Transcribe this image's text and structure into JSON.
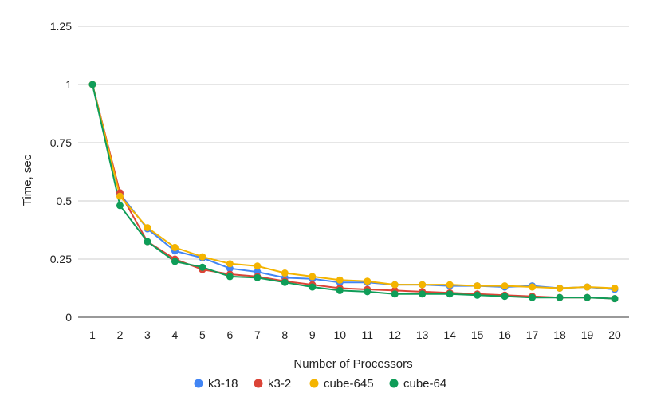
{
  "chart_data": {
    "type": "line",
    "title": "",
    "xlabel": "Number of Processors",
    "ylabel": "Time, sec",
    "x": [
      1,
      2,
      3,
      4,
      5,
      6,
      7,
      8,
      9,
      10,
      11,
      12,
      13,
      14,
      15,
      16,
      17,
      18,
      19,
      20
    ],
    "x_tick_labels": [
      "1",
      "2",
      "3",
      "4",
      "5",
      "6",
      "7",
      "8",
      "9",
      "10",
      "11",
      "12",
      "13",
      "14",
      "15",
      "16",
      "17",
      "18",
      "19",
      "20"
    ],
    "ylim": [
      0,
      1.25
    ],
    "y_ticks": [
      0,
      0.25,
      0.5,
      0.75,
      1,
      1.25
    ],
    "y_tick_labels": [
      "0",
      "0.25",
      "0.5",
      "0.75",
      "1",
      "1.25"
    ],
    "grid": true,
    "legend_position": "bottom",
    "series": [
      {
        "name": "k3-18",
        "color": "#4285F4",
        "values": [
          1.0,
          0.53,
          0.38,
          0.285,
          0.255,
          0.21,
          0.195,
          0.17,
          0.165,
          0.15,
          0.15,
          0.14,
          0.14,
          0.135,
          0.135,
          0.13,
          0.135,
          0.125,
          0.13,
          0.12
        ]
      },
      {
        "name": "k3-2",
        "color": "#DB4437",
        "values": [
          1.0,
          0.535,
          0.325,
          0.25,
          0.205,
          0.185,
          0.175,
          0.155,
          0.14,
          0.125,
          0.12,
          0.115,
          0.11,
          0.105,
          0.1,
          0.095,
          0.09,
          0.085,
          0.085,
          0.08
        ]
      },
      {
        "name": "cube-645",
        "color": "#F4B400",
        "values": [
          1.0,
          0.52,
          0.385,
          0.3,
          0.26,
          0.23,
          0.22,
          0.19,
          0.175,
          0.16,
          0.155,
          0.14,
          0.14,
          0.14,
          0.135,
          0.135,
          0.13,
          0.125,
          0.13,
          0.125
        ]
      },
      {
        "name": "cube-64",
        "color": "#0F9D58",
        "values": [
          1.0,
          0.48,
          0.325,
          0.24,
          0.215,
          0.175,
          0.17,
          0.15,
          0.13,
          0.115,
          0.11,
          0.1,
          0.1,
          0.1,
          0.095,
          0.09,
          0.085,
          0.085,
          0.085,
          0.08
        ]
      }
    ]
  }
}
